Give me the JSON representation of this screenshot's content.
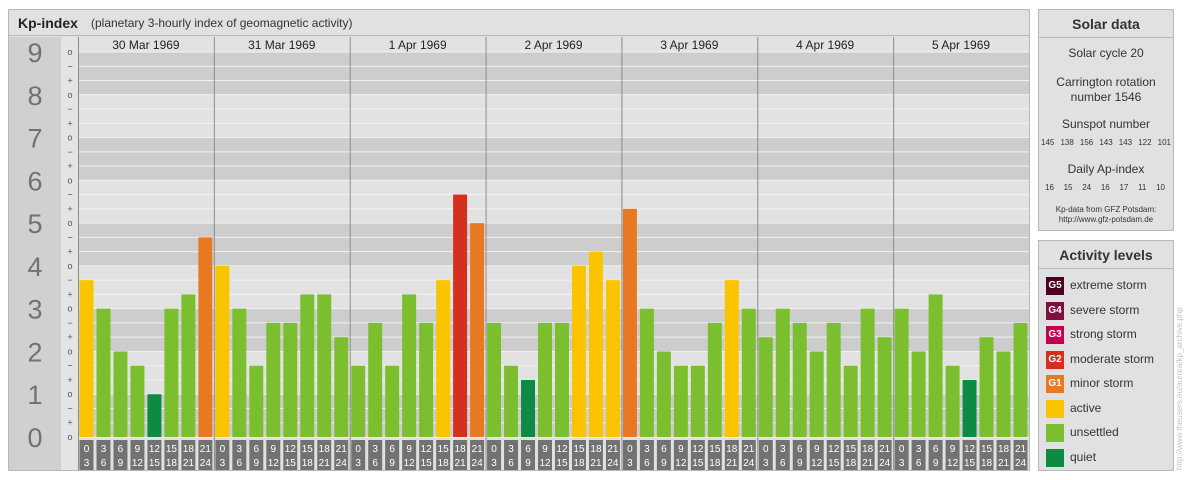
{
  "header": {
    "title": "Kp-index",
    "subtitle": "(planetary 3-hourly index of geomagnetic activity)"
  },
  "axis": {
    "major_labels": [
      "0",
      "1",
      "2",
      "3",
      "4",
      "5",
      "6",
      "7",
      "8",
      "9"
    ],
    "sub_labels": [
      "o",
      "+",
      "−",
      "o",
      "+",
      "−",
      "o",
      "+",
      "−",
      "o",
      "+",
      "−",
      "o",
      "+",
      "−",
      "o",
      "+",
      "−",
      "o",
      "+",
      "−",
      "o",
      "+",
      "−",
      "o",
      "+",
      "−",
      "o"
    ]
  },
  "chart_data": {
    "type": "bar",
    "ylim": [
      0,
      9
    ],
    "days": [
      "30 Mar 1969",
      "31 Mar 1969",
      "1 Apr 1969",
      "2 Apr 1969",
      "3 Apr 1969",
      "4 Apr 1969",
      "5 Apr 1969"
    ],
    "interval_starts": [
      "0",
      "3",
      "6",
      "9",
      "12",
      "15",
      "18",
      "21"
    ],
    "interval_ends": [
      "3",
      "6",
      "9",
      "12",
      "15",
      "18",
      "21",
      "24"
    ],
    "values": [
      [
        3.667,
        3.0,
        2.0,
        1.667,
        1.0,
        3.0,
        3.333,
        4.667
      ],
      [
        4.0,
        3.0,
        1.667,
        2.667,
        2.667,
        3.333,
        3.333,
        2.333
      ],
      [
        1.667,
        2.667,
        1.667,
        3.333,
        2.667,
        3.667,
        5.667,
        5.0
      ],
      [
        2.667,
        1.667,
        1.333,
        2.667,
        2.667,
        4.0,
        4.333,
        3.667
      ],
      [
        5.333,
        3.0,
        2.0,
        1.667,
        1.667,
        2.667,
        3.667,
        3.0
      ],
      [
        2.333,
        3.0,
        2.667,
        2.0,
        2.667,
        1.667,
        3.0,
        2.333
      ],
      [
        3.0,
        2.0,
        3.333,
        1.667,
        1.333,
        2.333,
        2.0,
        2.667
      ]
    ],
    "colors": {
      "quiet": "#0e8b42",
      "unsettled": "#7cbf2e",
      "active": "#fbc400",
      "minor": "#e87922",
      "moderate": "#d52f1f",
      "strong": "#c2004f",
      "severe": "#7e1142",
      "extreme": "#4d0022"
    }
  },
  "solar": {
    "title": "Solar data",
    "cycle": "Solar cycle 20",
    "carrington_line1": "Carrington rotation",
    "carrington_line2": "number 1546",
    "sunspot_title": "Sunspot number",
    "sunspot_values": [
      "145",
      "138",
      "156",
      "143",
      "143",
      "122",
      "101"
    ],
    "ap_title": "Daily Ap-index",
    "ap_values": [
      "16",
      "15",
      "24",
      "16",
      "17",
      "11",
      "10"
    ],
    "credit_line1": "Kp-data from GFZ Potsdam:",
    "credit_line2": "http://www.gfz-potsdam.de"
  },
  "activity": {
    "title": "Activity levels",
    "items": [
      {
        "code": "G5",
        "label": "extreme storm",
        "color": "#4d0022"
      },
      {
        "code": "G4",
        "label": "severe storm",
        "color": "#7e1142"
      },
      {
        "code": "G3",
        "label": "strong storm",
        "color": "#c2004f"
      },
      {
        "code": "G2",
        "label": "moderate storm",
        "color": "#d52f1f"
      },
      {
        "code": "G1",
        "label": "minor storm",
        "color": "#e87922"
      },
      {
        "code": "",
        "label": "active",
        "color": "#fbc400"
      },
      {
        "code": "",
        "label": "unsettled",
        "color": "#7cbf2e"
      },
      {
        "code": "",
        "label": "quiet",
        "color": "#0e8b42"
      }
    ]
  },
  "footer": {
    "url": "http://www.theusers.eu/aurora/kp_archive.php"
  }
}
